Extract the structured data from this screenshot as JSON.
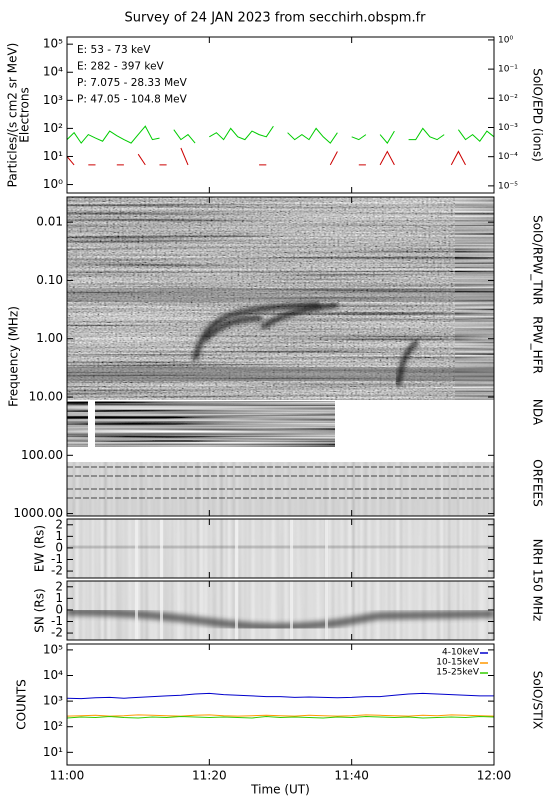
{
  "chart_data": [
    {
      "type": "line",
      "title": "Survey of 24 JAN 2023 from secchirh.obspm.fr",
      "ylabel": [
        "Particles/(s cm2 sr MeV)",
        "Electrons"
      ],
      "y2label": "SolO/EPD (ions)",
      "log": true,
      "ylim": [
        0.5,
        180000
      ],
      "yticks": [
        {
          "value": 1,
          "label": "10⁰"
        },
        {
          "value": 10,
          "label": "10¹"
        },
        {
          "value": 100,
          "label": "10²"
        },
        {
          "value": 1000,
          "label": "10³"
        },
        {
          "value": 10000,
          "label": "10⁴"
        },
        {
          "value": 100000,
          "label": "10⁵"
        }
      ],
      "y2lim": [
        5.7e-06,
        1.26
      ],
      "y2ticks": [
        {
          "value": 1,
          "label": "10⁰"
        },
        {
          "value": 0.1,
          "label": "10⁻¹"
        },
        {
          "value": 0.01,
          "label": "10⁻²"
        },
        {
          "value": 0.001,
          "label": "10⁻³"
        },
        {
          "value": 0.0001,
          "label": "10⁻⁴"
        },
        {
          "value": 1e-05,
          "label": "10⁻⁵"
        }
      ],
      "xlim": [
        "11:00",
        "12:00"
      ],
      "x": [
        "11:00",
        "11:01",
        "11:02",
        "11:03",
        "11:04",
        "11:05",
        "11:06",
        "11:07",
        "11:08",
        "11:09",
        "11:10",
        "11:11",
        "11:12",
        "11:13",
        "11:14",
        "11:15",
        "11:16",
        "11:17",
        "11:18",
        "11:19",
        "11:20",
        "11:21",
        "11:22",
        "11:23",
        "11:24",
        "11:25",
        "11:26",
        "11:27",
        "11:28",
        "11:29",
        "11:30",
        "11:31",
        "11:32",
        "11:33",
        "11:34",
        "11:35",
        "11:36",
        "11:37",
        "11:38",
        "11:39",
        "11:40",
        "11:41",
        "11:42",
        "11:43",
        "11:44",
        "11:45",
        "11:46",
        "11:47",
        "11:48",
        "11:49",
        "11:50",
        "11:51",
        "11:52",
        "11:53",
        "11:54",
        "11:55",
        "11:56",
        "11:57",
        "11:58",
        "11:59",
        "12:00"
      ],
      "legend": "top-left",
      "series": [
        {
          "name": "E: 53 - 73 keV",
          "color": "#00cc00",
          "values": [
            40,
            70,
            30,
            60,
            45,
            35,
            80,
            55,
            40,
            30,
            60,
            120,
            40,
            45,
            null,
            90,
            40,
            60,
            30,
            null,
            50,
            70,
            40,
            100,
            50,
            40,
            80,
            60,
            50,
            120,
            null,
            70,
            40,
            60,
            40,
            100,
            50,
            30,
            70,
            null,
            50,
            40,
            60,
            null,
            60,
            30,
            80,
            null,
            40,
            40,
            100,
            50,
            40,
            60,
            null,
            90,
            40,
            60,
            35,
            80,
            50
          ]
        },
        {
          "name": "E: 282 - 397 keV",
          "color": "#cc0000",
          "values": [
            10,
            5,
            null,
            5,
            5,
            null,
            null,
            5,
            5,
            null,
            12,
            5,
            null,
            5,
            5,
            null,
            20,
            5,
            null,
            null,
            null,
            null,
            null,
            null,
            null,
            null,
            null,
            5,
            5,
            null,
            null,
            null,
            null,
            null,
            null,
            null,
            null,
            5,
            15,
            null,
            null,
            5,
            5,
            null,
            5,
            15,
            5,
            null,
            null,
            null,
            null,
            null,
            null,
            null,
            5,
            15,
            5,
            null,
            null,
            null,
            null
          ]
        }
      ],
      "legend_only": [
        {
          "name": "P: 7.075 - 28.33 MeV",
          "color": "#000000"
        },
        {
          "name": "P: 47.05 - 104.8 MeV",
          "color": "#0000cc"
        }
      ]
    },
    {
      "type": "spectrogram",
      "ylabel": [
        "Frequency (MHz)"
      ],
      "log": true,
      "ylim": [
        1100,
        0.0037
      ],
      "yticks": [
        0.01,
        {
          "value": 0.1,
          "label": "0.10"
        },
        {
          "value": 1,
          "label": "1.00"
        },
        {
          "value": 10,
          "label": "10.00"
        },
        {
          "value": 100,
          "label": "100.00"
        },
        {
          "value": 1000,
          "label": "1000.00"
        }
      ],
      "right_labels": [
        "SolO/RPW_TNR",
        "RPW_HFR",
        "NDA",
        "ORFEES"
      ]
    },
    {
      "type": "image",
      "ylabel": [
        "EW (Rs)"
      ],
      "ylim": [
        -2.6,
        2.5
      ],
      "yticks": [
        2,
        1,
        0,
        -1,
        -2
      ],
      "right_labels": [
        "NRH 150 MHz"
      ]
    },
    {
      "type": "image",
      "ylabel": [
        "SN (Rs)"
      ],
      "ylim": [
        -2.6,
        2.5
      ],
      "yticks": [
        2,
        1,
        0,
        -1,
        -2
      ],
      "right_labels": []
    },
    {
      "type": "line",
      "ylabel": [
        "COUNTS"
      ],
      "right_labels": [
        "SolO/STIX"
      ],
      "log": true,
      "ylim": [
        3.2,
        170000
      ],
      "yticks": [
        {
          "value": 10,
          "label": "10¹"
        },
        {
          "value": 100,
          "label": "10²"
        },
        {
          "value": 1000,
          "label": "10³"
        },
        {
          "value": 10000,
          "label": "10⁴"
        },
        {
          "value": 100000,
          "label": "10⁵"
        }
      ],
      "xlim": [
        "11:00",
        "12:00"
      ],
      "xticks": [
        "11:00",
        "11:20",
        "11:40",
        "12:00"
      ],
      "xlabel": "Time (UT)",
      "legend": "top-right",
      "x": [
        "11:00",
        "11:02",
        "11:04",
        "11:06",
        "11:08",
        "11:10",
        "11:12",
        "11:14",
        "11:16",
        "11:18",
        "11:20",
        "11:22",
        "11:24",
        "11:26",
        "11:28",
        "11:30",
        "11:32",
        "11:34",
        "11:36",
        "11:38",
        "11:40",
        "11:42",
        "11:44",
        "11:46",
        "11:48",
        "11:50",
        "11:52",
        "11:54",
        "11:56",
        "11:58",
        "12:00"
      ],
      "series": [
        {
          "name": "4-10keV",
          "color": "#0000cc",
          "values": [
            1300,
            1250,
            1350,
            1400,
            1300,
            1400,
            1500,
            1600,
            1700,
            1900,
            2000,
            1800,
            1700,
            1600,
            1500,
            1500,
            1400,
            1450,
            1400,
            1350,
            1400,
            1500,
            1500,
            1700,
            1900,
            2000,
            1900,
            1800,
            1700,
            1600,
            1600
          ]
        },
        {
          "name": "10-15keV",
          "color": "#ff9900",
          "values": [
            260,
            270,
            280,
            260,
            270,
            290,
            280,
            270,
            260,
            280,
            290,
            270,
            260,
            270,
            280,
            270,
            260,
            280,
            270,
            260,
            270,
            290,
            280,
            270,
            260,
            280,
            270,
            290,
            280,
            270,
            260
          ]
        },
        {
          "name": "15-25keV",
          "color": "#33cc00",
          "values": [
            220,
            240,
            230,
            250,
            230,
            220,
            240,
            230,
            250,
            240,
            230,
            240,
            230,
            220,
            250,
            230,
            240,
            230,
            220,
            240,
            230,
            250,
            240,
            230,
            240,
            220,
            230,
            240,
            230,
            250,
            240
          ]
        }
      ]
    }
  ]
}
